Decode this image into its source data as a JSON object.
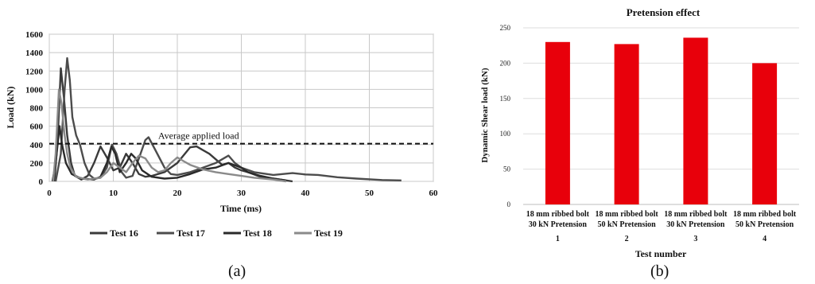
{
  "chart_data": [
    {
      "type": "line",
      "panel_label": "(a)",
      "xlabel": "Time (ms)",
      "ylabel": "Load (kN)",
      "xlim": [
        0,
        60
      ],
      "ylim": [
        0,
        1600
      ],
      "xticks": [
        "0",
        "10",
        "20",
        "30",
        "40",
        "50",
        "60"
      ],
      "yticks": [
        "0",
        "200",
        "400",
        "600",
        "800",
        "1000",
        "1200",
        "1400",
        "1600"
      ],
      "grid": true,
      "legend_position": "bottom",
      "reference_line": {
        "label": "Average applied load",
        "y": 410
      },
      "series": [
        {
          "name": "Test 16",
          "color": "#3a3a3a",
          "points": [
            [
              0.8,
              0
            ],
            [
              1.3,
              450
            ],
            [
              1.8,
              1230
            ],
            [
              2.3,
              900
            ],
            [
              2.8,
              500
            ],
            [
              3.4,
              200
            ],
            [
              4,
              60
            ],
            [
              5,
              20
            ],
            [
              6,
              60
            ],
            [
              7,
              200
            ],
            [
              8,
              380
            ],
            [
              9,
              260
            ],
            [
              10,
              120
            ],
            [
              11,
              150
            ],
            [
              12,
              300
            ],
            [
              13,
              200
            ],
            [
              14,
              80
            ],
            [
              15,
              50
            ],
            [
              16,
              60
            ],
            [
              18,
              100
            ],
            [
              20,
              200
            ],
            [
              22,
              370
            ],
            [
              23,
              380
            ],
            [
              25,
              300
            ],
            [
              27,
              180
            ],
            [
              28,
              200
            ],
            [
              29,
              150
            ],
            [
              30,
              120
            ],
            [
              31,
              100
            ],
            [
              33,
              50
            ],
            [
              35,
              30
            ],
            [
              37,
              10
            ],
            [
              38,
              0
            ]
          ]
        },
        {
          "name": "Test 17",
          "color": "#4c4c4c",
          "points": [
            [
              1,
              0
            ],
            [
              1.8,
              300
            ],
            [
              2.4,
              1000
            ],
            [
              2.8,
              1340
            ],
            [
              3.2,
              1100
            ],
            [
              3.6,
              700
            ],
            [
              4.2,
              500
            ],
            [
              4.8,
              400
            ],
            [
              5.5,
              200
            ],
            [
              6.3,
              70
            ],
            [
              7,
              30
            ],
            [
              8,
              40
            ],
            [
              9,
              150
            ],
            [
              9.8,
              400
            ],
            [
              10.5,
              300
            ],
            [
              11.3,
              100
            ],
            [
              12,
              40
            ],
            [
              13,
              60
            ],
            [
              14,
              250
            ],
            [
              15,
              450
            ],
            [
              15.5,
              480
            ],
            [
              16.5,
              350
            ],
            [
              18,
              150
            ],
            [
              19,
              80
            ],
            [
              20,
              70
            ],
            [
              22,
              100
            ],
            [
              24,
              150
            ],
            [
              26,
              200
            ],
            [
              28,
              280
            ],
            [
              29,
              200
            ],
            [
              30,
              150
            ],
            [
              32,
              100
            ],
            [
              35,
              70
            ],
            [
              38,
              90
            ],
            [
              40,
              75
            ],
            [
              42,
              70
            ],
            [
              45,
              45
            ],
            [
              48,
              30
            ],
            [
              52,
              15
            ],
            [
              55,
              10
            ]
          ]
        },
        {
          "name": "Test 18",
          "color": "#2a2a2a",
          "points": [
            [
              0.5,
              0
            ],
            [
              1,
              200
            ],
            [
              1.6,
              600
            ],
            [
              2,
              400
            ],
            [
              2.6,
              200
            ],
            [
              3.5,
              80
            ],
            [
              5,
              30
            ],
            [
              7,
              20
            ],
            [
              8,
              50
            ],
            [
              9,
              200
            ],
            [
              9.7,
              380
            ],
            [
              10.3,
              300
            ],
            [
              11,
              100
            ],
            [
              12,
              200
            ],
            [
              12.8,
              300
            ],
            [
              13.5,
              250
            ],
            [
              14.5,
              120
            ],
            [
              16,
              50
            ],
            [
              18,
              30
            ],
            [
              20,
              40
            ],
            [
              22,
              80
            ],
            [
              24,
              130
            ],
            [
              26,
              150
            ],
            [
              28,
              200
            ],
            [
              30,
              150
            ],
            [
              31,
              100
            ],
            [
              33,
              60
            ],
            [
              35,
              30
            ],
            [
              37,
              10
            ]
          ]
        },
        {
          "name": "Test 19",
          "color": "#8a8a8a",
          "points": [
            [
              0.6,
              0
            ],
            [
              1,
              300
            ],
            [
              1.5,
              1000
            ],
            [
              1.9,
              850
            ],
            [
              2.4,
              500
            ],
            [
              2.8,
              300
            ],
            [
              3.3,
              150
            ],
            [
              4.2,
              50
            ],
            [
              6,
              20
            ],
            [
              8,
              40
            ],
            [
              9,
              100
            ],
            [
              10,
              200
            ],
            [
              11,
              150
            ],
            [
              12,
              100
            ],
            [
              13,
              200
            ],
            [
              14,
              280
            ],
            [
              15,
              250
            ],
            [
              16,
              150
            ],
            [
              17,
              100
            ],
            [
              18,
              120
            ],
            [
              19,
              200
            ],
            [
              20,
              260
            ],
            [
              21,
              220
            ],
            [
              22,
              180
            ],
            [
              24,
              130
            ],
            [
              26,
              100
            ],
            [
              28,
              80
            ],
            [
              30,
              60
            ],
            [
              32,
              40
            ],
            [
              35,
              20
            ],
            [
              37,
              0
            ]
          ]
        }
      ]
    },
    {
      "type": "bar",
      "panel_label": "(b)",
      "title": "Pretension effect",
      "xlabel": "Test number",
      "ylabel": "Dynamic Shear load (kN)",
      "ylim": [
        0,
        250
      ],
      "yticks": [
        "0",
        "50",
        "100",
        "150",
        "200",
        "250"
      ],
      "grid": true,
      "bar_color": "#e8000b",
      "categories": [
        {
          "line1": "18 mm ribbed bolt",
          "line2": "30 kN Pretension",
          "number": "1"
        },
        {
          "line1": "18 mm ribbed bolt",
          "line2": "50 kN Pretension",
          "number": "2"
        },
        {
          "line1": "18 mm ribbed bolt",
          "line2": "30 kN Pretension",
          "number": "3"
        },
        {
          "line1": "18 mm ribbed bolt",
          "line2": "50 kN Pretension",
          "number": "4"
        }
      ],
      "values": [
        230,
        227,
        236,
        200
      ]
    }
  ]
}
